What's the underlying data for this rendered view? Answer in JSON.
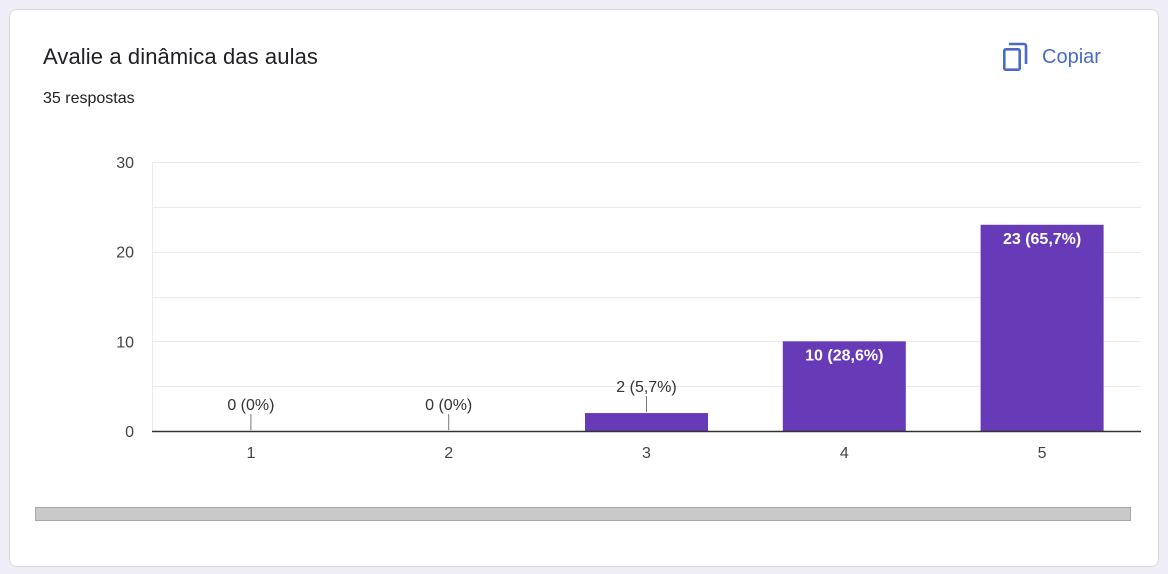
{
  "card": {
    "title": "Avalie a dinâmica das aulas",
    "responses": "35 respostas",
    "copy_label": "Copiar",
    "copy_icon": "copy-icon"
  },
  "colors": {
    "bar": "#673ab7",
    "accent": "#4a6ac8",
    "grid": "#ebebeb",
    "axis": "#333333"
  },
  "chart_data": {
    "type": "bar",
    "title": "",
    "xlabel": "",
    "ylabel": "",
    "categories": [
      "1",
      "2",
      "3",
      "4",
      "5"
    ],
    "values": [
      0,
      0,
      2,
      10,
      23
    ],
    "data_labels": [
      "0 (0%)",
      "0 (0%)",
      "2 (5,7%)",
      "10 (28,6%)",
      "23 (65,7%)"
    ],
    "ylim": [
      0,
      30
    ],
    "yticks": [
      "0",
      "10",
      "20",
      "30"
    ],
    "grid": true,
    "legend": "none"
  }
}
